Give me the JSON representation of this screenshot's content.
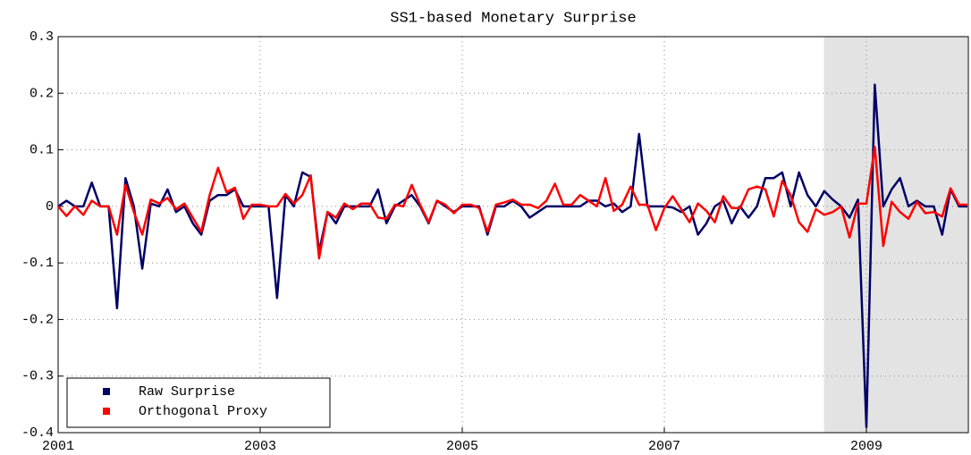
{
  "chart_data": {
    "type": "line",
    "title": "SS1-based Monetary Surprise",
    "x": [
      2001,
      2001.083,
      2001.167,
      2001.25,
      2001.333,
      2001.417,
      2001.5,
      2001.583,
      2001.667,
      2001.75,
      2001.833,
      2001.917,
      2002,
      2002.083,
      2002.167,
      2002.25,
      2002.333,
      2002.417,
      2002.5,
      2002.583,
      2002.667,
      2002.75,
      2002.833,
      2002.917,
      2003,
      2003.083,
      2003.167,
      2003.25,
      2003.333,
      2003.417,
      2003.5,
      2003.583,
      2003.667,
      2003.75,
      2003.833,
      2003.917,
      2004,
      2004.083,
      2004.167,
      2004.25,
      2004.333,
      2004.417,
      2004.5,
      2004.583,
      2004.667,
      2004.75,
      2004.833,
      2004.917,
      2005,
      2005.083,
      2005.167,
      2005.25,
      2005.333,
      2005.417,
      2005.5,
      2005.583,
      2005.667,
      2005.75,
      2005.833,
      2005.917,
      2006,
      2006.083,
      2006.167,
      2006.25,
      2006.333,
      2006.417,
      2006.5,
      2006.583,
      2006.667,
      2006.75,
      2006.833,
      2006.917,
      2007,
      2007.083,
      2007.167,
      2007.25,
      2007.333,
      2007.417,
      2007.5,
      2007.583,
      2007.667,
      2007.75,
      2007.833,
      2007.917,
      2008,
      2008.083,
      2008.167,
      2008.25,
      2008.333,
      2008.417,
      2008.5,
      2008.583,
      2008.667,
      2008.75,
      2008.833,
      2008.917,
      2009,
      2009.083,
      2009.167,
      2009.25,
      2009.333,
      2009.417,
      2009.5,
      2009.583,
      2009.667,
      2009.75,
      2009.833,
      2009.917,
      2010
    ],
    "series": [
      {
        "name": "Raw Surprise",
        "color": "#000066",
        "values": [
          0,
          0.01,
          0,
          0,
          0.042,
          0,
          0,
          -0.18,
          0.05,
          0,
          -0.11,
          0.005,
          0,
          0.03,
          -0.01,
          0,
          -0.03,
          -0.05,
          0.01,
          0.02,
          0.02,
          0.03,
          0,
          0,
          0,
          0,
          -0.162,
          0.02,
          0,
          0.06,
          0.052,
          -0.08,
          -0.01,
          -0.03,
          0,
          0,
          0,
          0,
          0.03,
          -0.03,
          0,
          0.01,
          0.02,
          0,
          -0.03,
          0.01,
          0,
          -0.01,
          0,
          0,
          0,
          -0.05,
          0,
          0,
          0.01,
          0,
          -0.02,
          -0.01,
          0,
          0,
          0,
          0,
          0,
          0.01,
          0.01,
          0,
          0.005,
          -0.01,
          0,
          0.128,
          0,
          0,
          0,
          -0.002,
          -0.01,
          0,
          -0.05,
          -0.03,
          0,
          0.01,
          -0.03,
          0,
          -0.02,
          0,
          0.05,
          0.05,
          0.06,
          0,
          0.06,
          0.02,
          0,
          0.027,
          0.012,
          0,
          -0.02,
          0.012,
          -0.39,
          0.215,
          0,
          0.03,
          0.05,
          0,
          0.01,
          0,
          0,
          -0.05,
          0.03,
          0,
          0
        ]
      },
      {
        "name": "Orthogonal Proxy",
        "color": "#ff0000",
        "values": [
          0,
          -0.017,
          0,
          -0.015,
          0.01,
          0,
          0,
          -0.05,
          0.038,
          -0.01,
          -0.05,
          0.012,
          0.005,
          0.015,
          -0.005,
          0.005,
          -0.02,
          -0.045,
          0.02,
          0.068,
          0.025,
          0.033,
          -0.022,
          0.003,
          0.003,
          0,
          0,
          0.022,
          0.005,
          0.02,
          0.055,
          -0.092,
          -0.01,
          -0.02,
          0.005,
          -0.005,
          0.005,
          0.005,
          -0.02,
          -0.022,
          0.003,
          0,
          0.038,
          0.003,
          -0.028,
          0.01,
          0.003,
          -0.012,
          0.003,
          0.003,
          -0.003,
          -0.045,
          0.003,
          0.007,
          0.012,
          0.003,
          0.003,
          -0.003,
          0.01,
          0.04,
          0.003,
          0.003,
          0.02,
          0.01,
          0,
          0.05,
          -0.008,
          0.003,
          0.035,
          0.003,
          0.003,
          -0.042,
          -0.003,
          0.018,
          -0.005,
          -0.028,
          0.005,
          -0.008,
          -0.028,
          0.018,
          -0.003,
          -0.003,
          0.03,
          0.035,
          0.03,
          -0.018,
          0.045,
          0.02,
          -0.028,
          -0.045,
          -0.005,
          -0.015,
          -0.01,
          0,
          -0.055,
          0.005,
          0.005,
          0.105,
          -0.07,
          0.008,
          -0.01,
          -0.022,
          0.008,
          -0.012,
          -0.01,
          -0.018,
          0.032,
          0.003,
          0.003
        ]
      }
    ],
    "xlim": [
      2001,
      2010
    ],
    "xticks": [
      2001,
      2003,
      2005,
      2007,
      2009
    ],
    "ylim": [
      -0.4,
      0.3
    ],
    "yticks": [
      -0.4,
      -0.3,
      -0.2,
      -0.1,
      0,
      0.1,
      0.2,
      0.3
    ],
    "grid": true,
    "legend": "lower left",
    "shaded_region": {
      "x": [
        2008.58,
        2010
      ],
      "color": "#e3e3e3"
    }
  }
}
